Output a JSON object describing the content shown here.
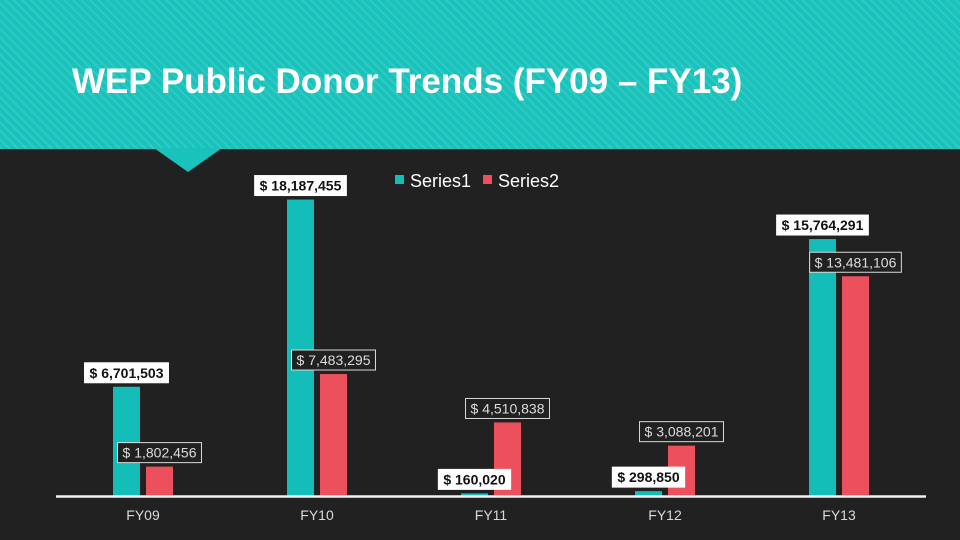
{
  "title": "WEP Public Donor Trends (FY09 – FY13)",
  "colors": {
    "header": "#19c3bc",
    "background": "#212121",
    "series1": "#14bdb7",
    "series2": "#ec505c",
    "axis": "#f2f2f2"
  },
  "chart_data": {
    "type": "bar",
    "categories": [
      "FY09",
      "FY10",
      "FY11",
      "FY12",
      "FY13"
    ],
    "series": [
      {
        "name": "Series1",
        "values": [
          6701503,
          18187455,
          160020,
          298850,
          15764291
        ],
        "labels": [
          "$ 6,701,503",
          "$ 18,187,455",
          "$ 160,020",
          "$ 298,850",
          "$ 15,764,291"
        ]
      },
      {
        "name": "Series2",
        "values": [
          1802456,
          7483295,
          4510838,
          3088201,
          13481106
        ],
        "labels": [
          "$ 1,802,456",
          "$ 7,483,295",
          "$ 4,510,838",
          "$ 3,088,201",
          "$ 13,481,106"
        ]
      }
    ],
    "ylim": [
      0,
      20000000
    ],
    "legend": "top",
    "grid": false
  }
}
